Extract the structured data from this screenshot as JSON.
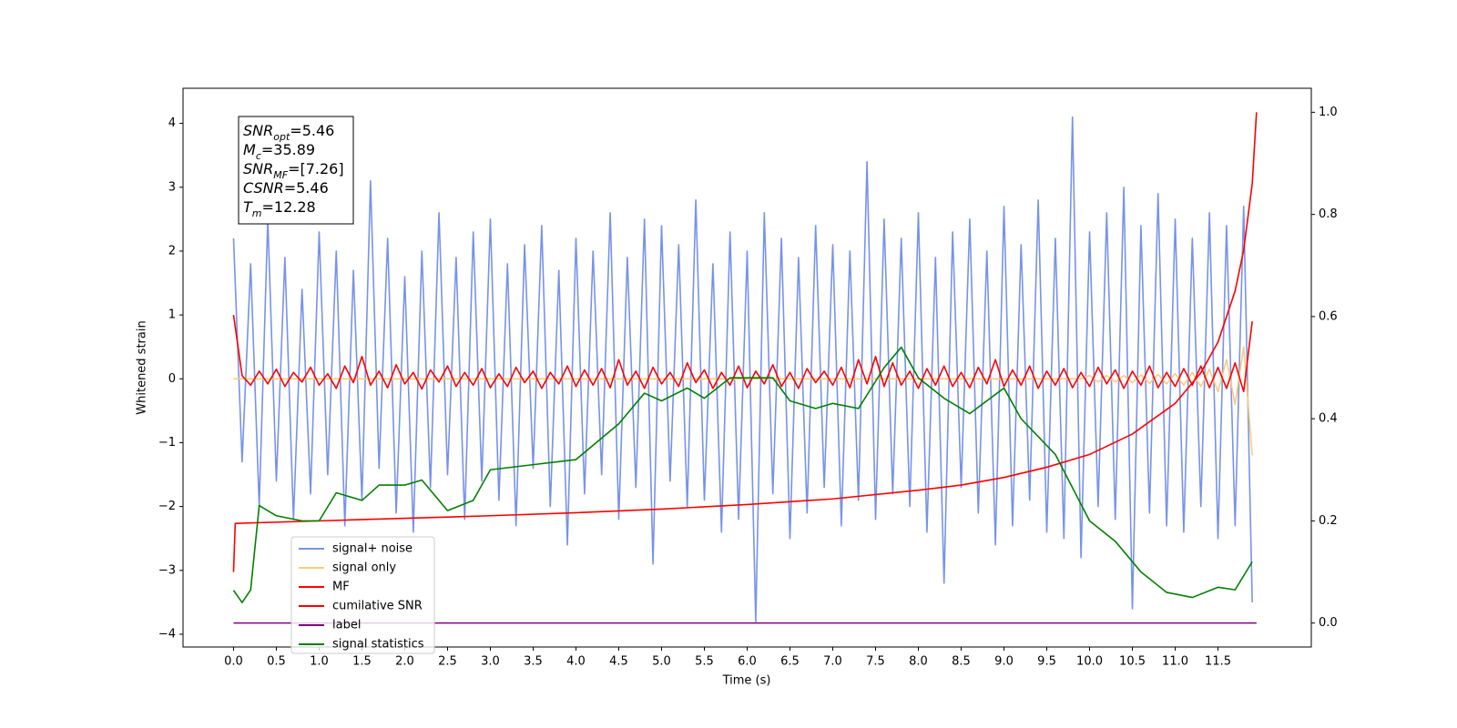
{
  "chart_data": {
    "type": "line",
    "xlabel": "Time (s)",
    "ylabel": "Whitened strain",
    "annotation": [
      {
        "symbol": "SNR",
        "sub": "opt",
        "text": "=5.46"
      },
      {
        "symbol": "M",
        "sub": "c",
        "text": "=35.89"
      },
      {
        "symbol": "SNR",
        "sub": "MF",
        "text": "=[7.26]"
      },
      {
        "symbol": "CSNR",
        "sub": null,
        "text": "=5.46"
      },
      {
        "symbol": "T",
        "sub": "m",
        "text": "=12.28"
      }
    ],
    "xlim": [
      -0.59,
      12.59
    ],
    "ylim": [
      -4.2,
      4.55
    ],
    "y2lim": [
      -0.047,
      1.047
    ],
    "xticks": [
      {
        "value": 0,
        "label": "0.0"
      },
      {
        "value": 0.5,
        "label": "0.5"
      },
      {
        "value": 1,
        "label": "1.0"
      },
      {
        "value": 1.5,
        "label": "1.5"
      },
      {
        "value": 2,
        "label": "2.0"
      },
      {
        "value": 2.5,
        "label": "2.5"
      },
      {
        "value": 3,
        "label": "3.0"
      },
      {
        "value": 3.5,
        "label": "3.5"
      },
      {
        "value": 4,
        "label": "4.0"
      },
      {
        "value": 4.5,
        "label": "4.5"
      },
      {
        "value": 5,
        "label": "5.0"
      },
      {
        "value": 5.5,
        "label": "5.5"
      },
      {
        "value": 6,
        "label": "6.0"
      },
      {
        "value": 6.5,
        "label": "6.5"
      },
      {
        "value": 7,
        "label": "7.0"
      },
      {
        "value": 7.5,
        "label": "7.5"
      },
      {
        "value": 8,
        "label": "8.0"
      },
      {
        "value": 8.5,
        "label": "8.5"
      },
      {
        "value": 9,
        "label": "9.0"
      },
      {
        "value": 9.5,
        "label": "9.5"
      },
      {
        "value": 10,
        "label": "10.0"
      },
      {
        "value": 10.5,
        "label": "10.5"
      },
      {
        "value": 11,
        "label": "11.0"
      },
      {
        "value": 11.5,
        "label": "11.5"
      }
    ],
    "yticks": [
      {
        "value": -4,
        "label": "−4"
      },
      {
        "value": -3,
        "label": "−3"
      },
      {
        "value": -2,
        "label": "−2"
      },
      {
        "value": -1,
        "label": "−1"
      },
      0,
      1,
      2,
      3,
      4
    ],
    "y2ticks": [
      {
        "value": 0,
        "label": "0.0"
      },
      {
        "value": 0.2,
        "label": "0.2"
      },
      {
        "value": 0.4,
        "label": "0.4"
      },
      {
        "value": 0.6,
        "label": "0.6"
      },
      {
        "value": 0.8,
        "label": "0.8"
      },
      {
        "value": 1,
        "label": "1.0"
      }
    ],
    "legend": "lower left",
    "x": [
      0,
      0.1,
      0.2,
      0.3,
      0.4,
      0.5,
      0.6,
      0.7,
      0.8,
      0.9,
      1,
      1.1,
      1.2,
      1.3,
      1.4,
      1.5,
      1.6,
      1.7,
      1.8,
      1.9,
      2,
      2.1,
      2.2,
      2.3,
      2.4,
      2.5,
      2.6,
      2.7,
      2.8,
      2.9,
      3,
      3.1,
      3.2,
      3.3,
      3.4,
      3.5,
      3.6,
      3.7,
      3.8,
      3.9,
      4,
      4.1,
      4.2,
      4.3,
      4.4,
      4.5,
      4.6,
      4.7,
      4.8,
      4.9,
      5,
      5.1,
      5.2,
      5.3,
      5.4,
      5.5,
      5.6,
      5.7,
      5.8,
      5.9,
      6,
      6.1,
      6.2,
      6.3,
      6.4,
      6.5,
      6.6,
      6.7,
      6.8,
      6.9,
      7,
      7.1,
      7.2,
      7.3,
      7.4,
      7.5,
      7.6,
      7.7,
      7.8,
      7.9,
      8,
      8.1,
      8.2,
      8.3,
      8.4,
      8.5,
      8.6,
      8.7,
      8.8,
      8.9,
      9,
      9.1,
      9.2,
      9.3,
      9.4,
      9.5,
      9.6,
      9.7,
      9.8,
      9.9,
      10,
      10.1,
      10.2,
      10.3,
      10.4,
      10.5,
      10.6,
      10.7,
      10.8,
      10.9,
      11,
      11.1,
      11.2,
      11.3,
      11.4,
      11.5,
      11.6,
      11.7,
      11.8,
      11.9
    ],
    "series": [
      {
        "name": "signal+ noise",
        "color": "#7793e8",
        "values": [
          2.2,
          -1.3,
          1.8,
          -2.0,
          2.5,
          -1.6,
          1.9,
          -2.2,
          1.4,
          -1.8,
          2.3,
          -1.5,
          2.0,
          -2.3,
          1.7,
          -1.9,
          3.1,
          -1.4,
          2.2,
          -2.1,
          1.6,
          -2.4,
          2.0,
          -1.7,
          2.6,
          -1.5,
          1.9,
          -2.2,
          2.3,
          -1.6,
          2.5,
          -1.9,
          1.8,
          -2.3,
          2.1,
          -1.4,
          2.4,
          -2.0,
          1.7,
          -2.6,
          2.2,
          -1.8,
          2.0,
          -1.5,
          2.6,
          -2.2,
          1.9,
          -1.7,
          2.5,
          -2.9,
          2.4,
          -1.6,
          2.1,
          -2.0,
          2.8,
          -1.9,
          1.8,
          -2.4,
          2.3,
          -2.2,
          2.0,
          -3.8,
          2.6,
          -1.8,
          2.2,
          -2.5,
          1.9,
          -2.1,
          2.4,
          -1.7,
          2.1,
          -2.3,
          2.0,
          -1.9,
          3.4,
          -2.2,
          2.5,
          -1.8,
          2.2,
          -2.0,
          2.6,
          -2.4,
          1.9,
          -3.2,
          2.3,
          -1.7,
          2.5,
          -2.1,
          2.0,
          -2.6,
          2.7,
          -2.3,
          2.1,
          -1.9,
          2.8,
          -2.4,
          2.2,
          -2.5,
          4.1,
          -2.8,
          2.3,
          -2.0,
          2.6,
          -2.2,
          3.0,
          -3.6,
          2.4,
          -2.1,
          2.9,
          -2.3,
          2.5,
          -2.4,
          2.2,
          -2.0,
          2.6,
          -2.5,
          2.4,
          -2.3,
          2.7,
          -3.5
        ]
      },
      {
        "name": "signal only",
        "color": "#f5cc80",
        "values": [
          0,
          0,
          0,
          0,
          0,
          0,
          0,
          0,
          0,
          0,
          0,
          0,
          0,
          0,
          0,
          0,
          0,
          0,
          0,
          0,
          0,
          0,
          0,
          0,
          0,
          0,
          0,
          0,
          0,
          0,
          0,
          0,
          0,
          0,
          0,
          0,
          0,
          0,
          0,
          0,
          0,
          0,
          0,
          0,
          0,
          0,
          0,
          0,
          0,
          0,
          0,
          0,
          0,
          0,
          0,
          0,
          0,
          0,
          0,
          0,
          0,
          0,
          0,
          0,
          0,
          0,
          0,
          0,
          0,
          0,
          0,
          0,
          0,
          0,
          0,
          0,
          0,
          0,
          0,
          0,
          0,
          0,
          0,
          0,
          0,
          0,
          0,
          0,
          0,
          0,
          0,
          0,
          0,
          0,
          0,
          0,
          0,
          0,
          0,
          0,
          0.05,
          -0.05,
          0.05,
          -0.05,
          0.05,
          -0.06,
          0.06,
          -0.07,
          0.07,
          -0.08,
          0.08,
          -0.1,
          0.1,
          -0.12,
          0.15,
          -0.2,
          0.3,
          -0.4,
          0.5,
          -1.2
        ]
      },
      {
        "name": "MF",
        "color": "#ff0000",
        "values": [
          1.0,
          0.05,
          -0.1,
          0.12,
          -0.08,
          0.15,
          -0.12,
          0.1,
          -0.05,
          0.18,
          -0.1,
          0.08,
          -0.15,
          0.2,
          -0.06,
          0.35,
          -0.1,
          0.12,
          -0.14,
          0.22,
          -0.08,
          0.1,
          -0.16,
          0.14,
          -0.05,
          0.2,
          -0.12,
          0.1,
          -0.1,
          0.16,
          -0.14,
          0.08,
          -0.12,
          0.18,
          -0.06,
          0.12,
          -0.15,
          0.1,
          -0.08,
          0.2,
          -0.12,
          0.14,
          -0.1,
          0.16,
          -0.14,
          0.3,
          -0.1,
          0.12,
          -0.15,
          0.18,
          -0.08,
          0.1,
          -0.12,
          0.25,
          -0.06,
          0.14,
          -0.15,
          0.1,
          -0.1,
          0.2,
          -0.14,
          0.12,
          -0.08,
          0.22,
          -0.12,
          0.1,
          -0.15,
          0.16,
          -0.06,
          0.12,
          -0.1,
          0.18,
          -0.14,
          0.3,
          -0.08,
          0.35,
          -0.12,
          0.25,
          -0.1,
          0.12,
          -0.15,
          0.16,
          -0.1,
          0.2,
          -0.12,
          0.1,
          -0.14,
          0.18,
          -0.08,
          0.3,
          -0.12,
          0.14,
          -0.1,
          0.2,
          -0.15,
          0.12,
          -0.1,
          0.16,
          -0.14,
          0.1,
          -0.12,
          0.18,
          -0.08,
          0.14,
          -0.15,
          0.12,
          -0.1,
          0.2,
          -0.14,
          0.1,
          -0.12,
          0.16,
          -0.1,
          0.2,
          -0.14,
          0.18,
          -0.15,
          0.25,
          -0.2,
          0.9
        ]
      },
      {
        "name": "cumilative SNR",
        "color": "#ff0000",
        "axis": "y2",
        "x": [
          0,
          0.02,
          1,
          2,
          3,
          4,
          5,
          6,
          7,
          8,
          8.5,
          9,
          9.5,
          10,
          10.5,
          11,
          11.3,
          11.5,
          11.7,
          11.8,
          11.9,
          11.95
        ],
        "values": [
          0.1,
          0.195,
          0.2,
          0.205,
          0.21,
          0.216,
          0.223,
          0.232,
          0.243,
          0.26,
          0.27,
          0.285,
          0.305,
          0.33,
          0.37,
          0.43,
          0.49,
          0.55,
          0.65,
          0.73,
          0.86,
          1.0
        ]
      },
      {
        "name": "label",
        "color": "#800080",
        "axis": "y2",
        "x": [
          0,
          11.95
        ],
        "values": [
          0,
          0
        ]
      },
      {
        "name": "signal statistics",
        "color": "#008000",
        "axis": "y2",
        "x": [
          0,
          0.1,
          0.2,
          0.3,
          0.5,
          0.8,
          1,
          1.2,
          1.5,
          1.7,
          2,
          2.2,
          2.5,
          2.8,
          3,
          3.5,
          4,
          4.5,
          4.8,
          5,
          5.3,
          5.5,
          5.8,
          6,
          6.3,
          6.5,
          6.8,
          7,
          7.3,
          7.6,
          7.8,
          8,
          8.3,
          8.6,
          9,
          9.2,
          9.6,
          10,
          10.3,
          10.6,
          10.9,
          11.2,
          11.5,
          11.7,
          11.9
        ],
        "values": [
          0.064,
          0.04,
          0.065,
          0.23,
          0.21,
          0.2,
          0.2,
          0.255,
          0.24,
          0.27,
          0.27,
          0.28,
          0.22,
          0.24,
          0.3,
          0.31,
          0.32,
          0.39,
          0.45,
          0.435,
          0.46,
          0.44,
          0.48,
          0.48,
          0.48,
          0.435,
          0.42,
          0.43,
          0.42,
          0.5,
          0.54,
          0.48,
          0.44,
          0.41,
          0.46,
          0.4,
          0.33,
          0.2,
          0.16,
          0.1,
          0.06,
          0.05,
          0.07,
          0.065,
          0.12
        ]
      }
    ]
  }
}
